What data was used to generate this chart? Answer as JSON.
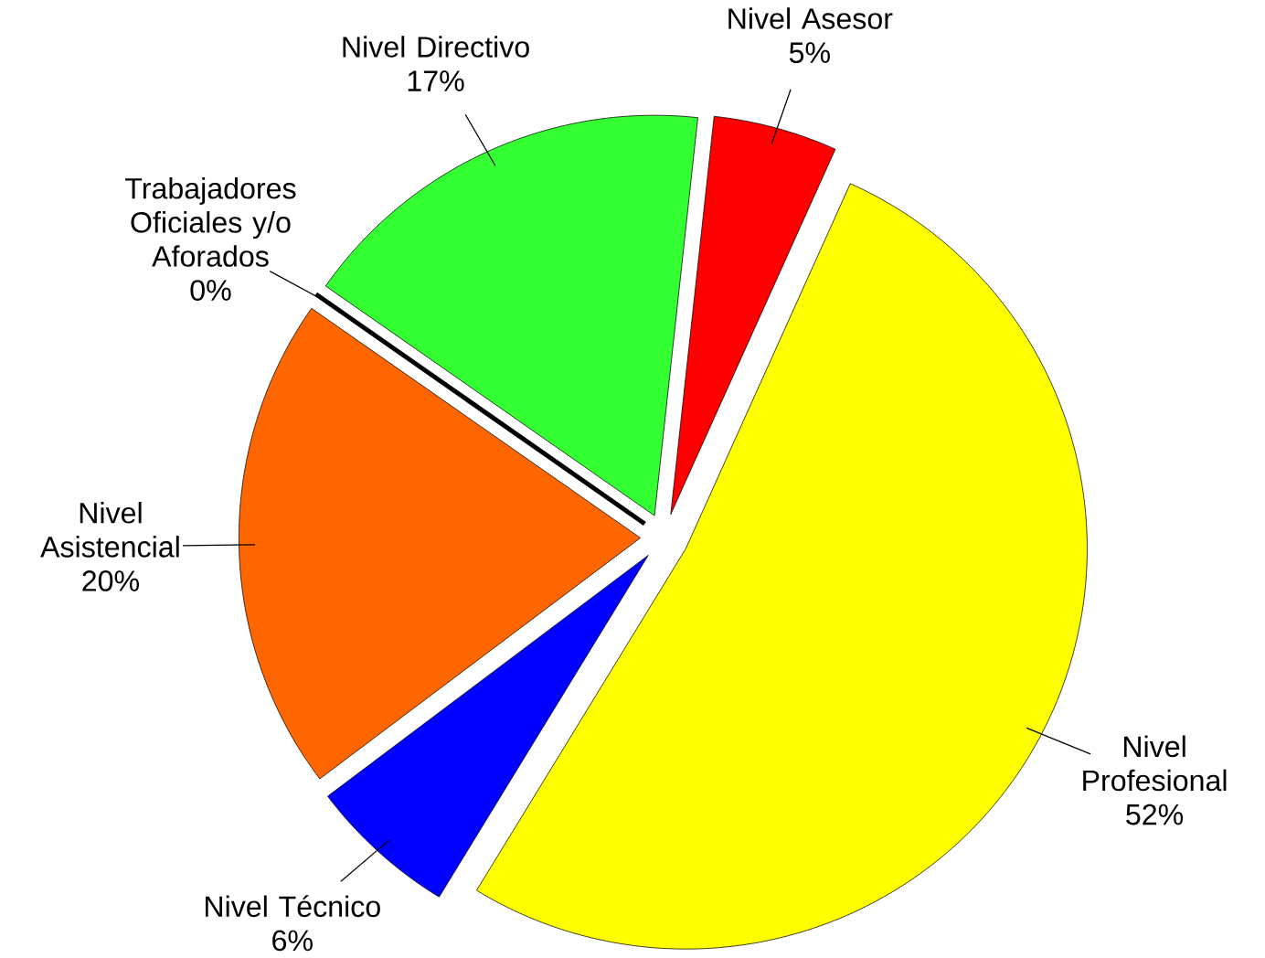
{
  "chart_data": {
    "type": "pie",
    "categories": [
      "Nivel Directivo",
      "Nivel Asesor",
      "Nivel Profesional",
      "Nivel Técnico",
      "Nivel Asistencial",
      "Trabajadores Oficiales y/o Aforados"
    ],
    "values": [
      17,
      5,
      52,
      6,
      20,
      0
    ],
    "value_labels": [
      "17%",
      "5%",
      "52%",
      "6%",
      "20%",
      "0%"
    ],
    "colors": [
      "#33ff33",
      "#ff0000",
      "#ffff00",
      "#0000ff",
      "#ff6600",
      "#000000"
    ]
  }
}
